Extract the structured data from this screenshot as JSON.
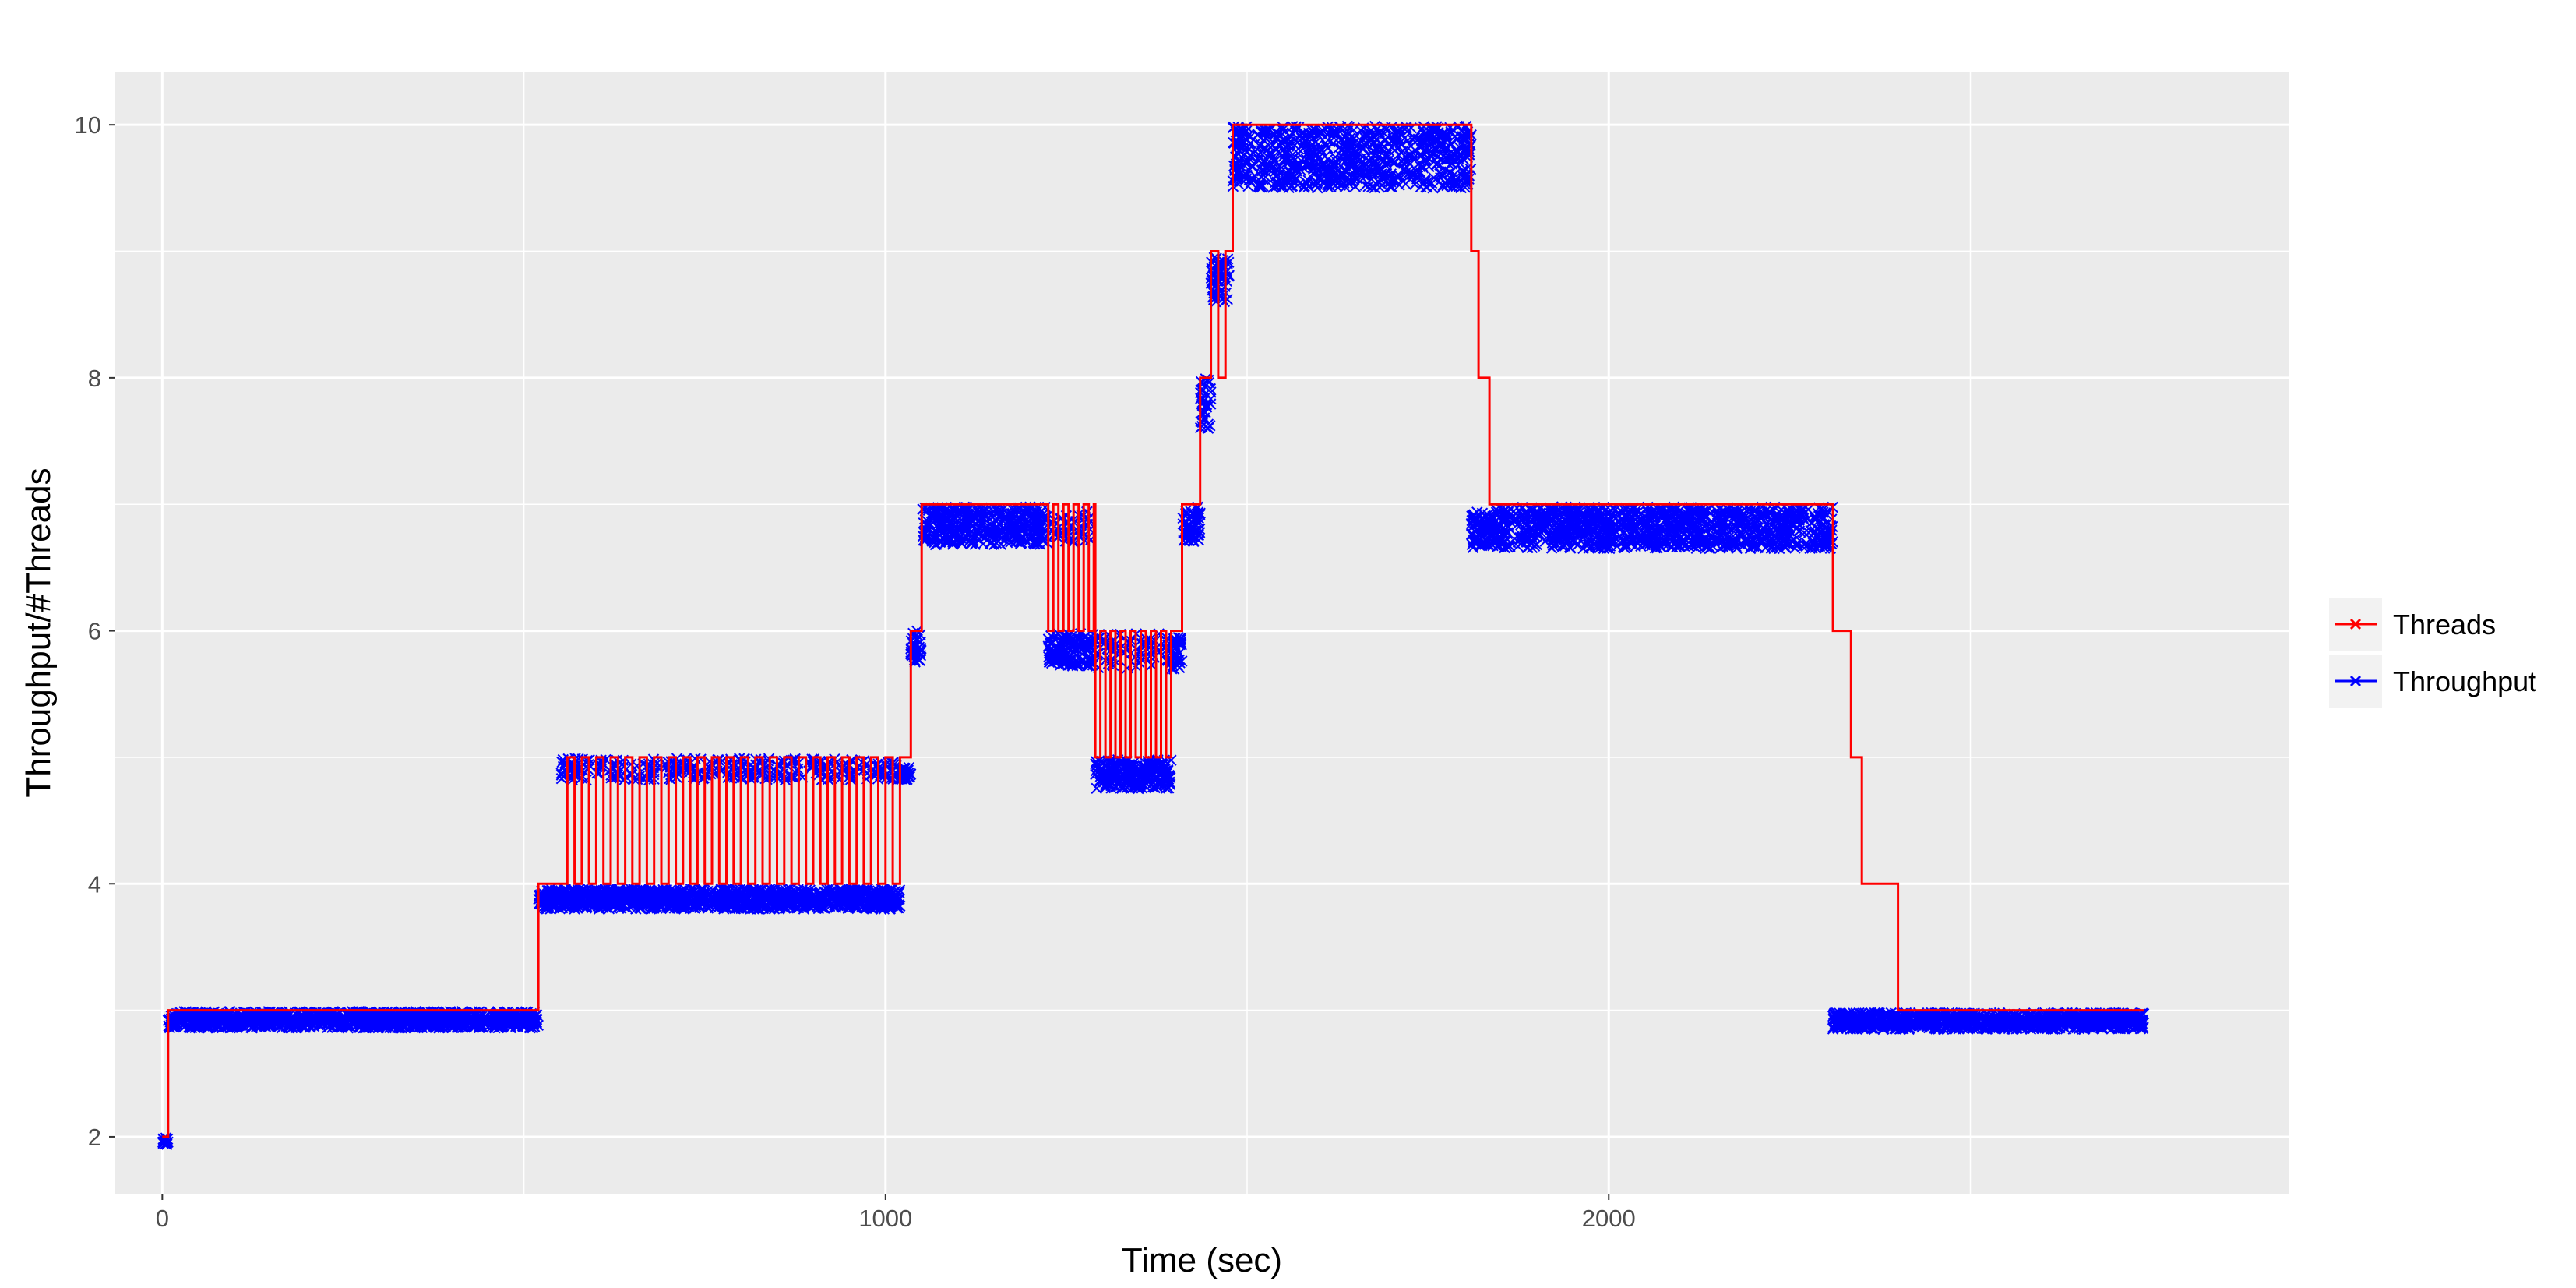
{
  "chart_data": {
    "type": "line",
    "title": "",
    "xlabel": "Time (sec)",
    "ylabel": "Throughput/#Threads",
    "xlim": [
      -65,
      2940
    ],
    "ylim": [
      1.55,
      10.42
    ],
    "x_ticks": [
      0,
      1000,
      2000
    ],
    "y_ticks": [
      2,
      4,
      6,
      8,
      10
    ],
    "grid": true,
    "panel_background": "#ebebeb",
    "legend_position": "right",
    "series": [
      {
        "name": "Threads",
        "color": "#ff0000",
        "marker": "x",
        "line": "step",
        "segments": [
          {
            "x": [
              0,
              8
            ],
            "y": 2
          },
          {
            "x": [
              8,
              520
            ],
            "y": 3
          },
          {
            "x": [
              520,
              550
            ],
            "y": 4
          },
          {
            "x": [
              550,
              1020
            ],
            "y": [
              4,
              5
            ],
            "alternating_period": 20
          },
          {
            "x": [
              1020,
              1035
            ],
            "y": 5
          },
          {
            "x": [
              1035,
              1050
            ],
            "y": 6
          },
          {
            "x": [
              1050,
              1225
            ],
            "y": 7
          },
          {
            "x": [
              1225,
              1290
            ],
            "y": [
              6,
              7
            ],
            "alternating_period": 14
          },
          {
            "x": [
              1290,
              1395
            ],
            "y": [
              5,
              6
            ],
            "alternating_period": 14
          },
          {
            "x": [
              1395,
              1410
            ],
            "y": 6
          },
          {
            "x": [
              1410,
              1425
            ],
            "y": 7
          },
          {
            "x": [
              1425,
              1435
            ],
            "y": 7
          },
          {
            "x": [
              1435,
              1450
            ],
            "y": 8
          },
          {
            "x": [
              1450,
              1460
            ],
            "y": 9
          },
          {
            "x": [
              1460,
              1470
            ],
            "y": 8
          },
          {
            "x": [
              1470,
              1480
            ],
            "y": 9
          },
          {
            "x": [
              1480,
              1810
            ],
            "y": 10
          },
          {
            "x": [
              1810,
              1820
            ],
            "y": 9
          },
          {
            "x": [
              1820,
              1835
            ],
            "y": 8
          },
          {
            "x": [
              1835,
              2310
            ],
            "y": 7
          },
          {
            "x": [
              2310,
              2335
            ],
            "y": 6
          },
          {
            "x": [
              2335,
              2350
            ],
            "y": 5
          },
          {
            "x": [
              2350,
              2400
            ],
            "y": 4
          },
          {
            "x": [
              2400,
              2740
            ],
            "y": 3
          }
        ]
      },
      {
        "name": "Throughput",
        "color": "#0000ff",
        "marker": "x",
        "line": "none",
        "clusters": [
          {
            "x": [
              0,
              8
            ],
            "y": [
              1.93,
              1.99
            ]
          },
          {
            "x": [
              8,
              520
            ],
            "y": [
              2.86,
              2.99
            ]
          },
          {
            "x": [
              520,
              1020
            ],
            "y": [
              3.8,
              3.96
            ]
          },
          {
            "x": [
              550,
              1020
            ],
            "y": [
              4.82,
              4.99
            ],
            "sparse": true
          },
          {
            "x": [
              1020,
              1035
            ],
            "y": [
              4.82,
              4.92
            ]
          },
          {
            "x": [
              1035,
              1050
            ],
            "y": [
              5.75,
              6.0
            ]
          },
          {
            "x": [
              1050,
              1225
            ],
            "y": [
              6.68,
              6.98
            ]
          },
          {
            "x": [
              1225,
              1290
            ],
            "y": [
              5.72,
              5.98
            ]
          },
          {
            "x": [
              1225,
              1290
            ],
            "y": [
              6.7,
              6.95
            ],
            "sparse": true
          },
          {
            "x": [
              1290,
              1395
            ],
            "y": [
              4.75,
              4.98
            ]
          },
          {
            "x": [
              1290,
              1395
            ],
            "y": [
              5.7,
              5.98
            ],
            "sparse": true
          },
          {
            "x": [
              1395,
              1410
            ],
            "y": [
              5.68,
              5.95
            ]
          },
          {
            "x": [
              1410,
              1435
            ],
            "y": [
              6.7,
              6.98
            ]
          },
          {
            "x": [
              1435,
              1450
            ],
            "y": [
              7.6,
              8.0
            ]
          },
          {
            "x": [
              1450,
              1475
            ],
            "y": [
              8.6,
              8.95
            ]
          },
          {
            "x": [
              1480,
              1810
            ],
            "y": [
              9.5,
              9.99
            ]
          },
          {
            "x": [
              1810,
              1835
            ],
            "y": [
              6.65,
              6.95
            ]
          },
          {
            "x": [
              1835,
              2310
            ],
            "y": [
              6.65,
              6.98
            ]
          },
          {
            "x": [
              2310,
              2740
            ],
            "y": [
              2.85,
              2.98
            ]
          }
        ]
      }
    ]
  }
}
